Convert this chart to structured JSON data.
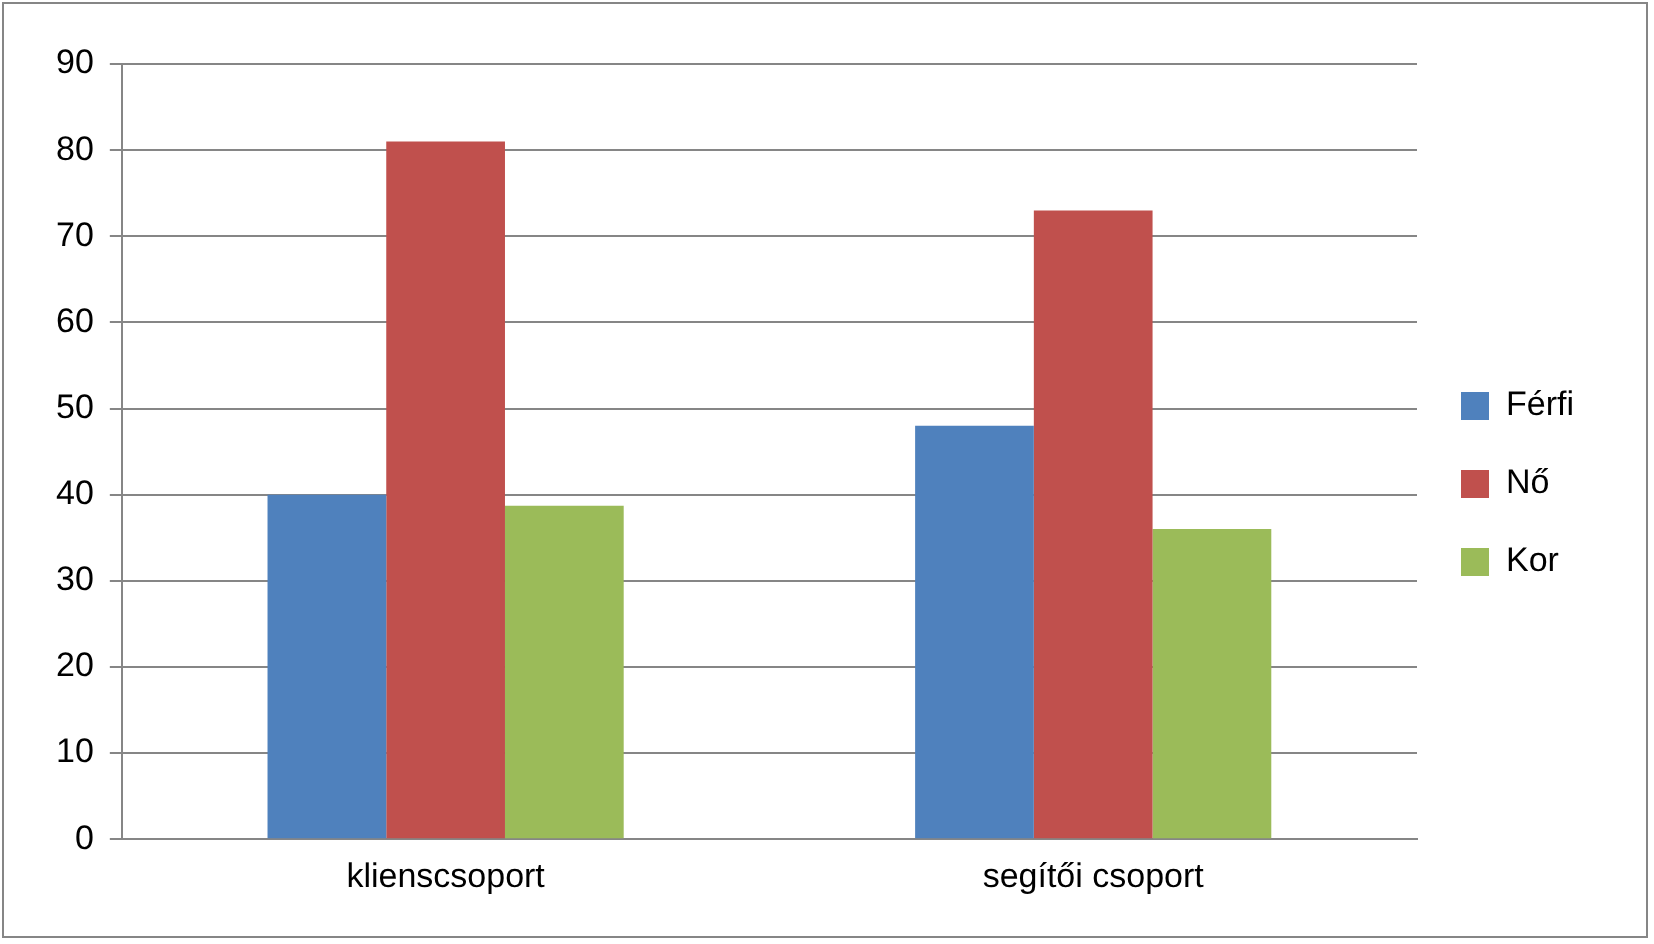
{
  "chart_data": {
    "type": "bar",
    "categories": [
      "klienscsoport",
      "segítői csoport"
    ],
    "series": [
      {
        "name": "Férfi",
        "color": "#4f81bd",
        "values": [
          40,
          48
        ]
      },
      {
        "name": "Nő",
        "color": "#c0504d",
        "values": [
          81,
          73
        ]
      },
      {
        "name": "Kor",
        "color": "#9bbb59",
        "values": [
          38.7,
          36
        ]
      }
    ],
    "ylim": [
      0,
      90
    ],
    "yticks": [
      0,
      10,
      20,
      30,
      40,
      50,
      60,
      70,
      80,
      90
    ],
    "grid": "y",
    "legend": "right"
  }
}
